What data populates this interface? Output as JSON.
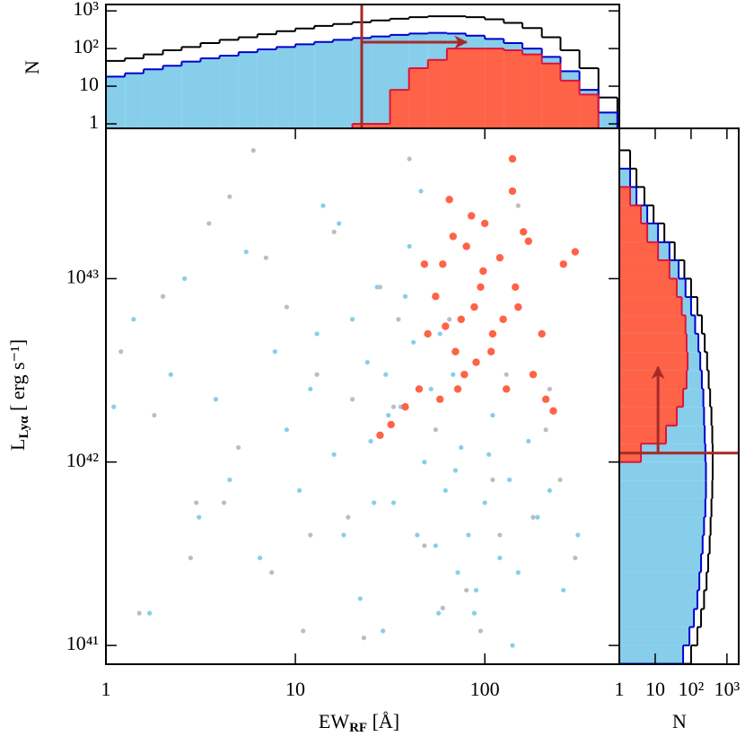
{
  "chart_data": [
    {
      "type": "scatter",
      "x_label": {
        "main": "EW",
        "sub": "RF",
        "rest": " [Å]"
      },
      "y_label": {
        "main": "L",
        "sub": "Lyα",
        "rest": " [ erg s⁻¹]"
      },
      "log_x": true,
      "log_y": true,
      "xlim": [
        1,
        513
      ],
      "ylim": [
        7.9e+40,
        6.6e+43
      ],
      "xticks": [
        1,
        10,
        100
      ],
      "yticks": [
        {
          "value": 1e+41,
          "label": "10⁴¹"
        },
        {
          "value": 1e+42,
          "label": "10⁴²"
        },
        {
          "value": 1e+43,
          "label": "10⁴³"
        }
      ],
      "series": [
        {
          "color": "#bdbdbd",
          "marker_size": 2.6,
          "x": [
            1.2,
            1.5,
            2,
            2.8,
            3.5,
            4.2,
            5,
            6,
            7.5,
            9,
            11,
            13,
            16,
            19,
            23,
            28,
            33,
            40,
            48,
            55,
            65,
            80,
            95,
            110,
            130,
            150,
            180,
            210,
            250,
            300,
            1.8,
            3,
            4.5,
            7,
            12,
            20,
            35,
            60,
            120,
            220
          ],
          "y": [
            4e+42,
            1.5e+41,
            8e+42,
            3e+41,
            2e+43,
            6e+41,
            1.2e+42,
            5e+43,
            2.5e+41,
            7e+42,
            1.2e+41,
            3e+42,
            1.8e+43,
            5e+41,
            1.1e+41,
            9e+42,
            2e+42,
            4.5e+43,
            3.5e+41,
            1.5e+42,
            6e+42,
            2e+41,
            1.2e+41,
            8e+41,
            3e+42,
            2.5e+43,
            5e+41,
            1.5e+42,
            8e+41,
            3e+41,
            1.8e+42,
            6e+41,
            2.8e+43,
            1.3e+43,
            4e+41,
            2.2e+42,
            6e+42,
            1.6e+41,
            4e+41,
            2.5e+42
          ]
        },
        {
          "color": "#87ceeb",
          "marker_size": 2.6,
          "x": [
            1.1,
            1.4,
            1.7,
            2.2,
            2.6,
            3.1,
            3.8,
            4.5,
            5.5,
            6.5,
            7.8,
            9,
            10.5,
            12,
            14,
            16,
            18,
            20,
            22,
            25,
            27,
            30,
            33,
            36,
            40,
            44,
            48,
            52,
            57,
            62,
            68,
            75,
            82,
            90,
            100,
            110,
            120,
            135,
            150,
            170,
            190,
            220,
            260,
            310,
            13,
            17,
            24,
            29,
            38,
            46,
            58,
            72,
            88,
            105,
            140,
            26,
            31,
            42,
            55,
            70
          ],
          "y": [
            2e+42,
            6e+42,
            1.5e+41,
            3e+42,
            1e+43,
            5e+41,
            2.2e+42,
            8e+41,
            1.4e+43,
            3e+41,
            4e+42,
            1.5e+42,
            7e+41,
            2.5e+42,
            2.5e+43,
            1.1e+42,
            4e+41,
            6e+42,
            1.8e+41,
            1.3e+42,
            9e+42,
            3e+42,
            6e+41,
            2e+42,
            1.5e+43,
            4e+41,
            1e+42,
            2.5e+42,
            1.5e+41,
            7e+41,
            3e+42,
            1.2e+42,
            4e+41,
            2e+41,
            6e+41,
            1.8e+42,
            3e+41,
            8e+41,
            2.5e+41,
            1.3e+42,
            5e+41,
            7e+41,
            2e+41,
            4e+41,
            5e+42,
            2e+43,
            3.5e+42,
            1.2e+41,
            8e+42,
            3e+43,
            5e+42,
            2.5e+41,
            1.5e+41,
            1.1e+42,
            1e+41,
            6e+41,
            1.8e+42,
            4.5e+42,
            3.5e+41,
            9e+41
          ]
        },
        {
          "color": "#ff6347",
          "marker_size": 4.2,
          "x": [
            28,
            32,
            38,
            45,
            50,
            55,
            60,
            65,
            70,
            75,
            80,
            85,
            90,
            95,
            100,
            110,
            120,
            130,
            140,
            150,
            160,
            180,
            200,
            230,
            260,
            300,
            48,
            58,
            68,
            78,
            88,
            98,
            108,
            125,
            145,
            170,
            210,
            62,
            72,
            140
          ],
          "y": [
            1.4e+42,
            1.6e+42,
            2e+42,
            2.5e+42,
            5e+42,
            8e+42,
            1.2e+43,
            2.7e+43,
            4e+42,
            6e+42,
            1.5e+43,
            2.2e+43,
            3.5e+42,
            9e+42,
            2e+43,
            5e+42,
            1.3e+43,
            2.5e+42,
            4.5e+43,
            7e+42,
            1.8e+43,
            3e+42,
            5e+42,
            1.9e+42,
            1.2e+43,
            1.4e+43,
            1.2e+43,
            2.2e+42,
            1.7e+43,
            3e+42,
            7e+42,
            1.1e+43,
            4e+42,
            6e+42,
            9e+42,
            1.6e+43,
            2.2e+42,
            5.5e+42,
            2.5e+42,
            3e+43
          ]
        }
      ]
    },
    {
      "type": "histogram",
      "orientation": "vertical",
      "y_label": "N",
      "log_x": true,
      "log_y": true,
      "xlim": [
        1,
        513
      ],
      "ylim": [
        0.76,
        1480
      ],
      "yticks": [
        1,
        10,
        {
          "value": 100,
          "label": "10²"
        },
        {
          "value": 1000,
          "label": "10³"
        }
      ],
      "bins": [
        1,
        1.26,
        1.58,
        2.0,
        2.51,
        3.16,
        3.98,
        5.01,
        6.31,
        7.94,
        10,
        12.6,
        15.8,
        20,
        25.1,
        31.6,
        39.8,
        50.1,
        63.1,
        79.4,
        100,
        126,
        158,
        200,
        251,
        316,
        398,
        501
      ],
      "series": [
        {
          "color": "#87ceeb",
          "line_color": "#0000cd",
          "filled": true,
          "values": [
            18,
            22,
            28,
            35,
            45,
            55,
            65,
            80,
            95,
            110,
            130,
            150,
            170,
            190,
            210,
            230,
            250,
            260,
            250,
            220,
            180,
            140,
            100,
            60,
            25,
            8,
            2
          ]
        },
        {
          "color": "#ff6347",
          "line_color": "#dc143c",
          "filled": true,
          "values": [
            0,
            0,
            0,
            0,
            0,
            0,
            0,
            0,
            0,
            0,
            0,
            0,
            0,
            1,
            1,
            8,
            30,
            50,
            100,
            100,
            100,
            90,
            70,
            40,
            14,
            6,
            0
          ]
        },
        {
          "color": "#000000",
          "line_color": "#000000",
          "filled": false,
          "values": [
            47,
            55,
            70,
            90,
            110,
            140,
            170,
            200,
            240,
            290,
            340,
            400,
            450,
            500,
            560,
            620,
            680,
            720,
            720,
            680,
            600,
            480,
            350,
            200,
            90,
            30,
            5
          ]
        }
      ],
      "threshold": {
        "color": "#a52a2a",
        "value": 22.4,
        "arrow_end": 80,
        "arrow_at": 148
      }
    },
    {
      "type": "histogram",
      "orientation": "horizontal",
      "x_label": "N",
      "log_x": true,
      "log_y": true,
      "xlim": [
        1,
        2130
      ],
      "ylim": [
        7.9e+40,
        6.6e+43
      ],
      "xticks": [
        1,
        10,
        {
          "value": 100,
          "label": "10²"
        },
        {
          "value": 1000,
          "label": "10³"
        }
      ],
      "bins": [
        7.94e+40,
        1e+41,
        1.26e+41,
        1.58e+41,
        2e+41,
        2.51e+41,
        3.16e+41,
        3.98e+41,
        5.01e+41,
        6.31e+41,
        7.94e+41,
        1e+42,
        1.26e+42,
        1.58e+42,
        2e+42,
        2.51e+42,
        3.16e+42,
        3.98e+42,
        5.01e+42,
        6.31e+42,
        7.94e+42,
        1e+43,
        1.26e+43,
        1.58e+43,
        2e+43,
        2.51e+43,
        3.16e+43,
        3.98e+43,
        5.01e+43,
        6.31e+43
      ],
      "series": [
        {
          "color": "#87ceeb",
          "line_color": "#0000cd",
          "filled": true,
          "values": [
            60,
            90,
            120,
            150,
            170,
            190,
            210,
            230,
            250,
            260,
            260,
            250,
            240,
            230,
            220,
            200,
            180,
            160,
            130,
            100,
            70,
            45,
            25,
            12,
            6,
            3,
            2,
            1,
            0
          ]
        },
        {
          "color": "#ff6347",
          "line_color": "#dc143c",
          "filled": true,
          "values": [
            0,
            0,
            0,
            0,
            0,
            0,
            0,
            0,
            0,
            0,
            0,
            4,
            20,
            40,
            60,
            75,
            80,
            75,
            70,
            55,
            40,
            25,
            12,
            6,
            4,
            2,
            0,
            1,
            0
          ]
        },
        {
          "color": "#000000",
          "line_color": "#000000",
          "filled": false,
          "values": [
            100,
            150,
            190,
            230,
            270,
            300,
            330,
            350,
            370,
            390,
            400,
            400,
            390,
            370,
            340,
            310,
            280,
            240,
            200,
            150,
            100,
            65,
            35,
            18,
            9,
            5,
            3,
            2,
            1
          ]
        }
      ],
      "threshold": {
        "color": "#a52a2a",
        "value": 1.12e+42,
        "arrow_end": 3.3e+42,
        "arrow_at": 12
      }
    }
  ]
}
